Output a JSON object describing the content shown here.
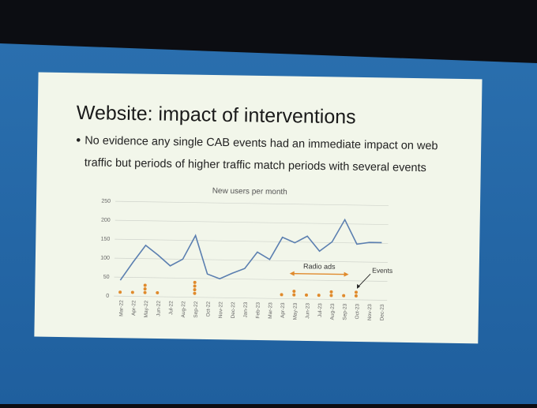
{
  "slide": {
    "title": "Website: impact of interventions",
    "bullet_lines": [
      "No evidence any single CAB events had an immediate impact on web",
      "traffic but periods of higher traffic match periods with several events"
    ]
  },
  "chart_data": {
    "type": "line",
    "title": "New users per month",
    "categories": [
      "Mar-22",
      "Apr-22",
      "May-22",
      "Jun-22",
      "Jul-22",
      "Aug-22",
      "Sep-22",
      "Oct-22",
      "Nov-22",
      "Dec-22",
      "Jan-23",
      "Feb-23",
      "Mar-23",
      "Apr-23",
      "May-23",
      "Jun-23",
      "Jul-23",
      "Aug-23",
      "Sep-23",
      "Oct-23",
      "Nov-23",
      "Dec-23"
    ],
    "values": [
      42,
      90,
      135,
      110,
      82,
      100,
      163,
      62,
      50,
      65,
      78,
      122,
      103,
      162,
      148,
      166,
      127,
      152,
      211,
      147,
      152,
      152
    ],
    "color": "#5b7fb0",
    "events": {
      "label": "Events",
      "color": "#e08a2c",
      "values": [
        1,
        1,
        3,
        1,
        0,
        0,
        4,
        0,
        0,
        0,
        0,
        0,
        0,
        1,
        2,
        1,
        1,
        2,
        1,
        2,
        0,
        0
      ]
    },
    "annotations": [
      "Radio ads"
    ],
    "ylim": [
      0,
      250
    ],
    "yticks": [
      0,
      50,
      100,
      150,
      200,
      250
    ],
    "grid": true
  }
}
